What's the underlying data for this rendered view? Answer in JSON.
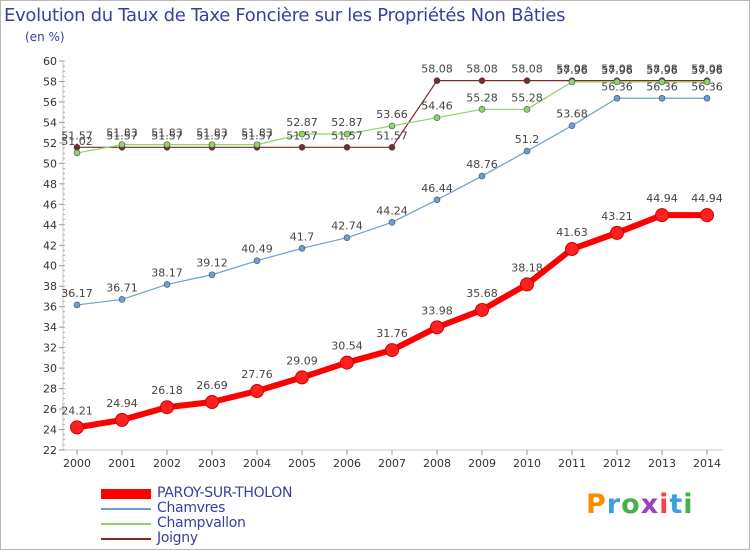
{
  "title": "Evolution du Taux de Taxe Foncière sur les Propriétés Non Bâties",
  "unit": "(en %)",
  "logo": {
    "text": "Proxiti",
    "colors": [
      "#ff8a00",
      "#3aa0e0",
      "#44b04a",
      "#9a40c0",
      "#ff4040",
      "#3aa0e0",
      "#44b04a"
    ]
  },
  "chart_data": {
    "type": "line",
    "x": [
      "2000",
      "2001",
      "2002",
      "2003",
      "2004",
      "2005",
      "2006",
      "2007",
      "2008",
      "2009",
      "2010",
      "2011",
      "2012",
      "2013",
      "2014"
    ],
    "ylim": [
      22,
      60
    ],
    "yticks": [
      "22",
      "24",
      "26",
      "28",
      "30",
      "32",
      "34",
      "36",
      "38",
      "40",
      "42",
      "44",
      "46",
      "48",
      "50",
      "52",
      "54",
      "56",
      "58",
      "60"
    ],
    "grid": false,
    "legend_position": "bottom-left",
    "series": [
      {
        "name": "PAROY-SUR-THOLON",
        "color": "#ff0000",
        "values": [
          24.21,
          24.94,
          26.18,
          26.69,
          27.76,
          29.09,
          30.54,
          31.76,
          33.98,
          35.68,
          38.18,
          41.63,
          43.21,
          44.94,
          44.94
        ],
        "labels": [
          "24.21",
          "24.94",
          "26.18",
          "26.69",
          "27.76",
          "29.09",
          "30.54",
          "31.76",
          "33.98",
          "35.68",
          "38.18",
          "41.63",
          "43.21",
          "44.94",
          "44.94"
        ]
      },
      {
        "name": "Chamvres",
        "color": "#6a9fd4",
        "values": [
          36.17,
          36.71,
          38.17,
          39.12,
          40.49,
          41.7,
          42.74,
          44.24,
          46.44,
          48.76,
          51.2,
          53.68,
          56.36,
          56.36,
          56.36
        ],
        "labels": [
          "36.17",
          "36.71",
          "38.17",
          "39.12",
          "40.49",
          "41.7",
          "42.74",
          "44.24",
          "46.44",
          "48.76",
          "51.2",
          "53.68",
          "56.36",
          "56.36",
          "56.36"
        ]
      },
      {
        "name": "Champvallon",
        "color": "#8ed46a",
        "values": [
          51.02,
          51.83,
          51.83,
          51.83,
          51.83,
          52.87,
          52.87,
          53.66,
          54.46,
          55.28,
          55.28,
          57.96,
          57.96,
          57.96,
          57.96
        ],
        "labels": [
          "51.02",
          "51.83",
          "51.83",
          "51.83",
          "51.83",
          "52.87",
          "52.87",
          "53.66",
          "54.46",
          "55.28",
          "55.28",
          "57.96",
          "57.96",
          "57.96",
          "57.96"
        ]
      },
      {
        "name": "Joigny",
        "color": "#7a2a2a",
        "values": [
          51.57,
          51.57,
          51.57,
          51.57,
          51.57,
          51.57,
          51.57,
          51.57,
          58.08,
          58.08,
          58.08,
          58.08,
          58.08,
          58.08,
          58.08
        ],
        "labels": [
          "51.57",
          "51.57",
          "51.57",
          "51.57",
          "51.57",
          "51.57",
          "51.57",
          "51.57",
          "58.08",
          "58.08",
          "58.08",
          "58.08",
          "58.08",
          "58.08",
          "58.08"
        ]
      }
    ]
  }
}
